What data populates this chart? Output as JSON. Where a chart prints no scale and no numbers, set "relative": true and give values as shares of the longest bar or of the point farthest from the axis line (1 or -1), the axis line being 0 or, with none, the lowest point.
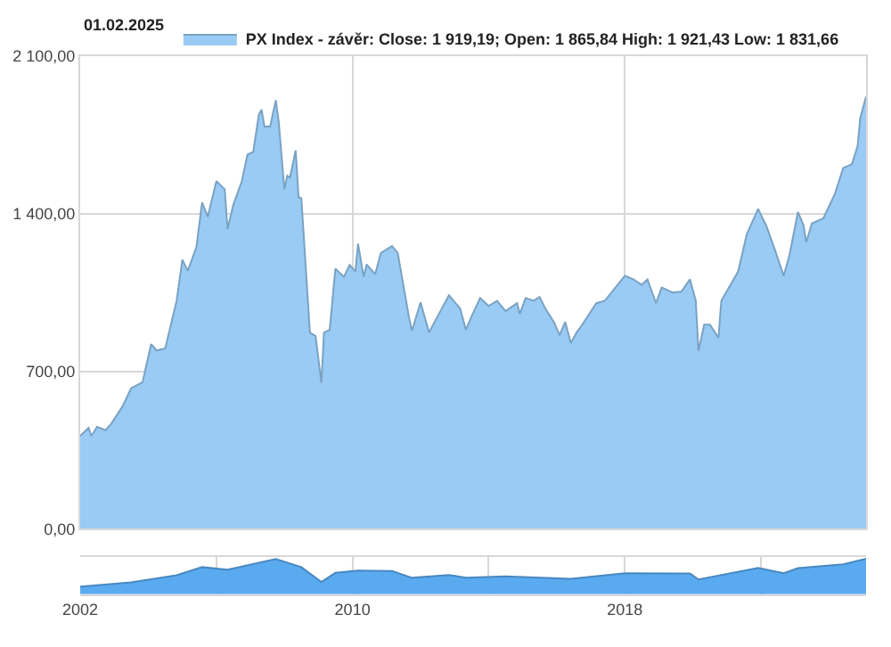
{
  "chart_data": [
    {
      "type": "area",
      "legend": "top",
      "grid": true,
      "tick_labels": "y",
      "marker": "none",
      "annotations": [
        "01.02.2025"
      ],
      "x": [
        "2002-01",
        "2002-04",
        "2002-05",
        "2002-07",
        "2002-10",
        "2002-12",
        "2003-04",
        "2003-07",
        "2003-11",
        "2004-02",
        "2004-04",
        "2004-07",
        "2004-11",
        "2005-01",
        "2005-03",
        "2005-06",
        "2005-08",
        "2005-10",
        "2006-01",
        "2006-04",
        "2006-05",
        "2006-07",
        "2006-10",
        "2006-12",
        "2007-02",
        "2007-04",
        "2007-05",
        "2007-06",
        "2007-08",
        "2007-10",
        "2007-11",
        "2008-01",
        "2008-02",
        "2008-03",
        "2008-05",
        "2008-06",
        "2008-07",
        "2008-10",
        "2008-12",
        "2009-02",
        "2009-03",
        "2009-05",
        "2009-07",
        "2009-10",
        "2009-12",
        "2010-02",
        "2010-03",
        "2010-05",
        "2010-06",
        "2010-09",
        "2010-11",
        "2011-03",
        "2011-05",
        "2011-09",
        "2011-10",
        "2012-01",
        "2012-04",
        "2012-07",
        "2012-11",
        "2013-03",
        "2013-05",
        "2013-07",
        "2013-10",
        "2014-01",
        "2014-04",
        "2014-07",
        "2014-11",
        "2014-12",
        "2015-02",
        "2015-05",
        "2015-07",
        "2015-09",
        "2015-12",
        "2016-02",
        "2016-04",
        "2016-06",
        "2016-08",
        "2016-10",
        "2017-03",
        "2017-06",
        "2018-01",
        "2018-04",
        "2018-07",
        "2018-09",
        "2018-12",
        "2019-02",
        "2019-06",
        "2019-09",
        "2019-12",
        "2020-02",
        "2020-03",
        "2020-05",
        "2020-07",
        "2020-10",
        "2020-11",
        "2021-05",
        "2021-08",
        "2021-12",
        "2022-03",
        "2022-06",
        "2022-09",
        "2022-11",
        "2023-02",
        "2023-04",
        "2023-05",
        "2023-07",
        "2023-11",
        "2024-03",
        "2024-06",
        "2024-09",
        "2024-11",
        "2024-12",
        "2025-02-01"
      ],
      "series": [
        {
          "name": "PX Index - závěr: Close: 1 919,19; Open: 1 865,84 High: 1 921,43 Low: 1 831,66",
          "color": "#99cbf4",
          "values": [
            412,
            448,
            412,
            453,
            438,
            467,
            544,
            624,
            651,
            820,
            792,
            801,
            1013,
            1195,
            1146,
            1252,
            1450,
            1386,
            1544,
            1508,
            1331,
            1438,
            1544,
            1662,
            1674,
            1838,
            1862,
            1787,
            1787,
            1904,
            1808,
            1508,
            1568,
            1560,
            1681,
            1473,
            1468,
            872,
            856,
            648,
            872,
            884,
            1155,
            1119,
            1172,
            1143,
            1266,
            1119,
            1174,
            1131,
            1225,
            1256,
            1225,
            935,
            879,
            1006,
            872,
            943,
            1037,
            978,
            884,
            943,
            1025,
            990,
            1013,
            967,
            1002,
            955,
            1025,
            1013,
            1030,
            978,
            919,
            860,
            919,
            825,
            872,
            907,
            1002,
            1013,
            1124,
            1108,
            1084,
            1108,
            1002,
            1072,
            1049,
            1054,
            1108,
            1013,
            790,
            907,
            907,
            849,
            1013,
            1143,
            1308,
            1421,
            1344,
            1237,
            1124,
            1214,
            1407,
            1350,
            1273,
            1356,
            1379,
            1485,
            1603,
            1619,
            1697,
            1826,
            1919
          ]
        }
      ],
      "xlim": [
        "2002-01-01",
        "2025-02-01"
      ],
      "xticks": [
        {
          "value": "2010-01-01",
          "label": null
        },
        {
          "value": "2018-01-01",
          "label": null
        }
      ],
      "ylim": [
        0,
        2100
      ],
      "yticks": [
        {
          "value": 0,
          "label": "0,00"
        },
        {
          "value": 700,
          "label": "700,00"
        },
        {
          "value": 1400,
          "label": "1 400,00"
        },
        {
          "value": 2100,
          "label": "2 100,00"
        }
      ]
    },
    {
      "type": "area",
      "relative": true,
      "grid": "x",
      "tick_labels": "x",
      "legend": false,
      "x": [
        "2002-01",
        "2003-07",
        "2004-11",
        "2005-08",
        "2006-05",
        "2007-10",
        "2008-07",
        "2009-02",
        "2009-07",
        "2010-03",
        "2011-03",
        "2011-10",
        "2012-11",
        "2013-05",
        "2014-07",
        "2016-06",
        "2018-01",
        "2019-12",
        "2020-03",
        "2021-12",
        "2022-09",
        "2023-02",
        "2024-06",
        "2025-02-01"
      ],
      "series": [
        {
          "color": "#5aaaf0",
          "values": [
            0.21,
            0.33,
            0.53,
            0.76,
            0.69,
            0.99,
            0.76,
            0.34,
            0.6,
            0.66,
            0.65,
            0.46,
            0.54,
            0.46,
            0.5,
            0.43,
            0.59,
            0.58,
            0.41,
            0.74,
            0.59,
            0.73,
            0.84,
            1.0
          ]
        }
      ],
      "xlim": [
        "2002-01-01",
        "2025-02-01"
      ],
      "xticks": [
        {
          "value": "2002-01-01",
          "label": "2002"
        },
        {
          "value": "2006-01-01",
          "label": null
        },
        {
          "value": "2010-01-01",
          "label": "2010"
        },
        {
          "value": "2014-01-01",
          "label": null
        },
        {
          "value": "2018-01-01",
          "label": "2018"
        },
        {
          "value": "2022-01-01",
          "label": null
        }
      ]
    }
  ]
}
